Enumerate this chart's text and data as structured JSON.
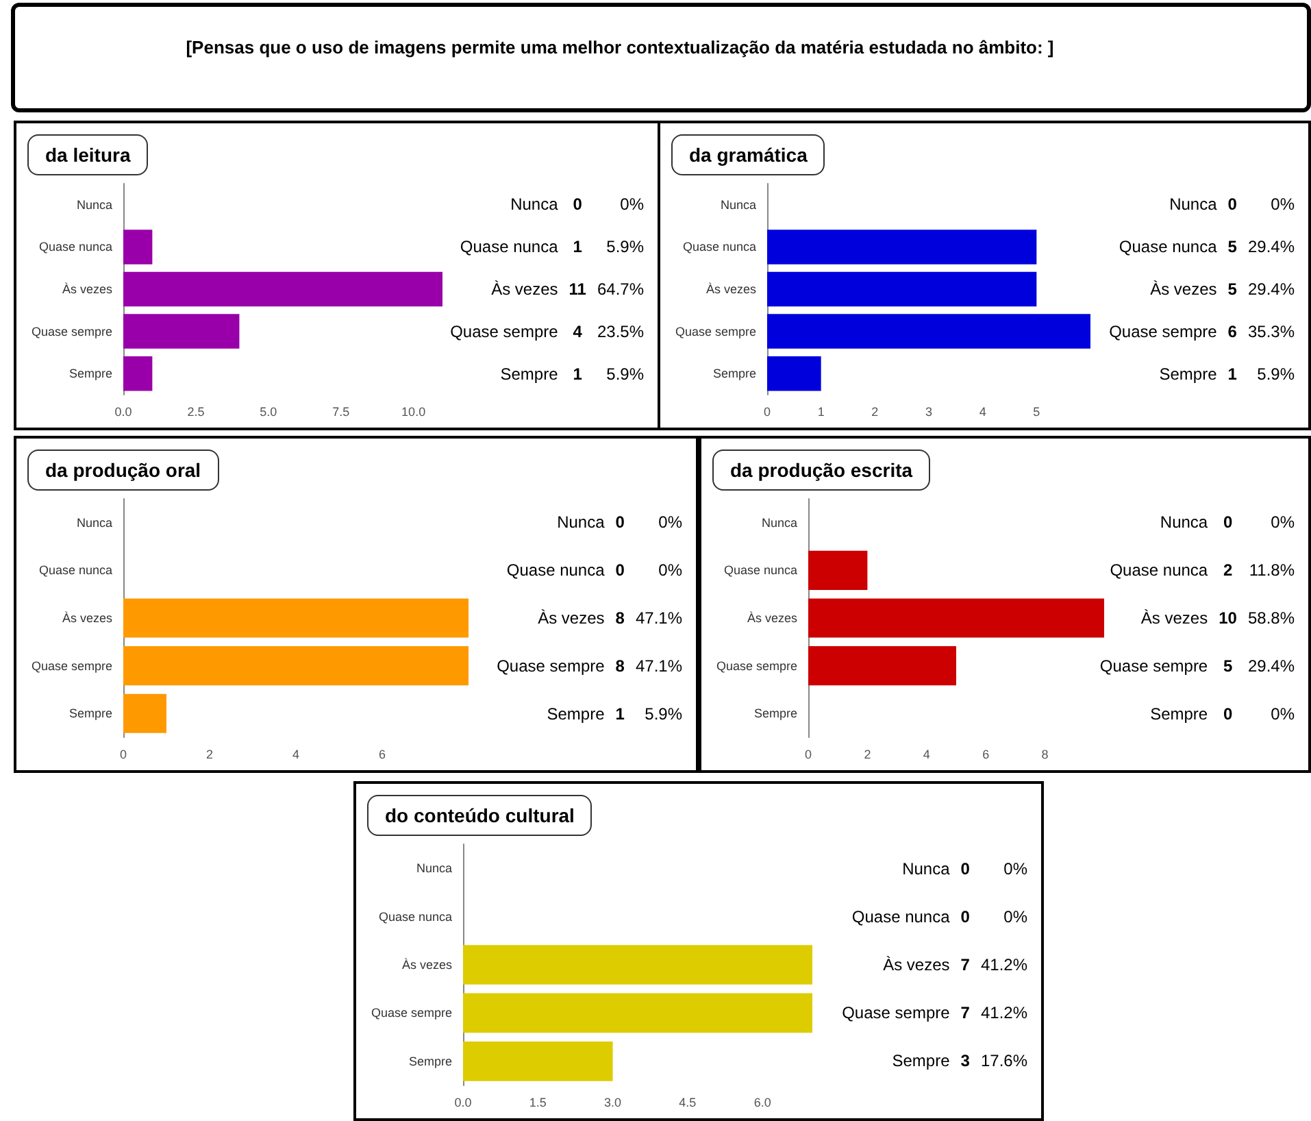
{
  "chart_data": [
    {
      "type": "other",
      "title": "[Pensas que o uso de imagens permite uma melhor  contextualização da matéria estudada no âmbito: ]"
    },
    {
      "type": "bar",
      "orientation": "horizontal",
      "title": "da leitura",
      "categories": [
        "Nunca",
        "Quase nunca",
        "Às vezes",
        "Quase sempre",
        "Sempre"
      ],
      "values": [
        0,
        1,
        11,
        4,
        1
      ],
      "data_labels": true,
      "color": "#9900aa",
      "xlim": [
        0,
        11
      ],
      "xticks": [
        {
          "value": 0,
          "label": "0.0"
        },
        {
          "value": 2.5,
          "label": "2.5"
        },
        {
          "value": 5,
          "label": "5.0"
        },
        {
          "value": 7.5,
          "label": "7.5"
        },
        {
          "value": 10,
          "label": "10.0"
        }
      ],
      "grid": false,
      "annotations": [
        "0%",
        "5.9%",
        "64.7%",
        "23.5%",
        "5.9%"
      ]
    },
    {
      "type": "bar",
      "orientation": "horizontal",
      "title": "da gramática",
      "categories": [
        "Nunca",
        "Quase nunca",
        "Às vezes",
        "Quase sempre",
        "Sempre"
      ],
      "values": [
        0,
        5,
        5,
        6,
        1
      ],
      "data_labels": true,
      "color": "#0000dd",
      "xlim": [
        0,
        6
      ],
      "xticks": [
        0,
        1,
        2,
        3,
        4,
        5
      ],
      "grid": false,
      "annotations": [
        "0%",
        "29.4%",
        "29.4%",
        "35.3%",
        "5.9%"
      ]
    },
    {
      "type": "bar",
      "orientation": "horizontal",
      "title": "da produção oral",
      "categories": [
        "Nunca",
        "Quase nunca",
        "Às vezes",
        "Quase sempre",
        "Sempre"
      ],
      "values": [
        0,
        0,
        8,
        8,
        1
      ],
      "data_labels": true,
      "color": "#ff9900",
      "xlim": [
        0,
        8
      ],
      "xticks": [
        0,
        2,
        4,
        6
      ],
      "grid": false,
      "annotations": [
        "0%",
        "0%",
        "47.1%",
        "47.1%",
        "5.9%"
      ]
    },
    {
      "type": "bar",
      "orientation": "horizontal",
      "title": "da produção escrita",
      "categories": [
        "Nunca",
        "Quase nunca",
        "Às vezes",
        "Quase sempre",
        "Sempre"
      ],
      "values": [
        0,
        2,
        10,
        5,
        0
      ],
      "data_labels": true,
      "color": "#cc0000",
      "xlim": [
        0,
        10
      ],
      "xticks": [
        0,
        2,
        4,
        6,
        8
      ],
      "grid": false,
      "annotations": [
        "0%",
        "11.8%",
        "58.8%",
        "29.4%",
        "0%"
      ]
    },
    {
      "type": "bar",
      "orientation": "horizontal",
      "title": "do conteúdo cultural",
      "categories": [
        "Nunca",
        "Quase nunca",
        "Às vezes",
        "Quase sempre",
        "Sempre"
      ],
      "values": [
        0,
        0,
        7,
        7,
        3
      ],
      "data_labels": true,
      "color": "#ddcc00",
      "xlim": [
        0,
        7
      ],
      "xticks": [
        {
          "value": 0,
          "label": "0.0"
        },
        {
          "value": 1.5,
          "label": "1.5"
        },
        {
          "value": 3,
          "label": "3.0"
        },
        {
          "value": 4.5,
          "label": "4.5"
        },
        {
          "value": 6,
          "label": "6.0"
        }
      ],
      "grid": false,
      "annotations": [
        "0%",
        "0%",
        "41.2%",
        "41.2%",
        "17.6%"
      ]
    }
  ]
}
